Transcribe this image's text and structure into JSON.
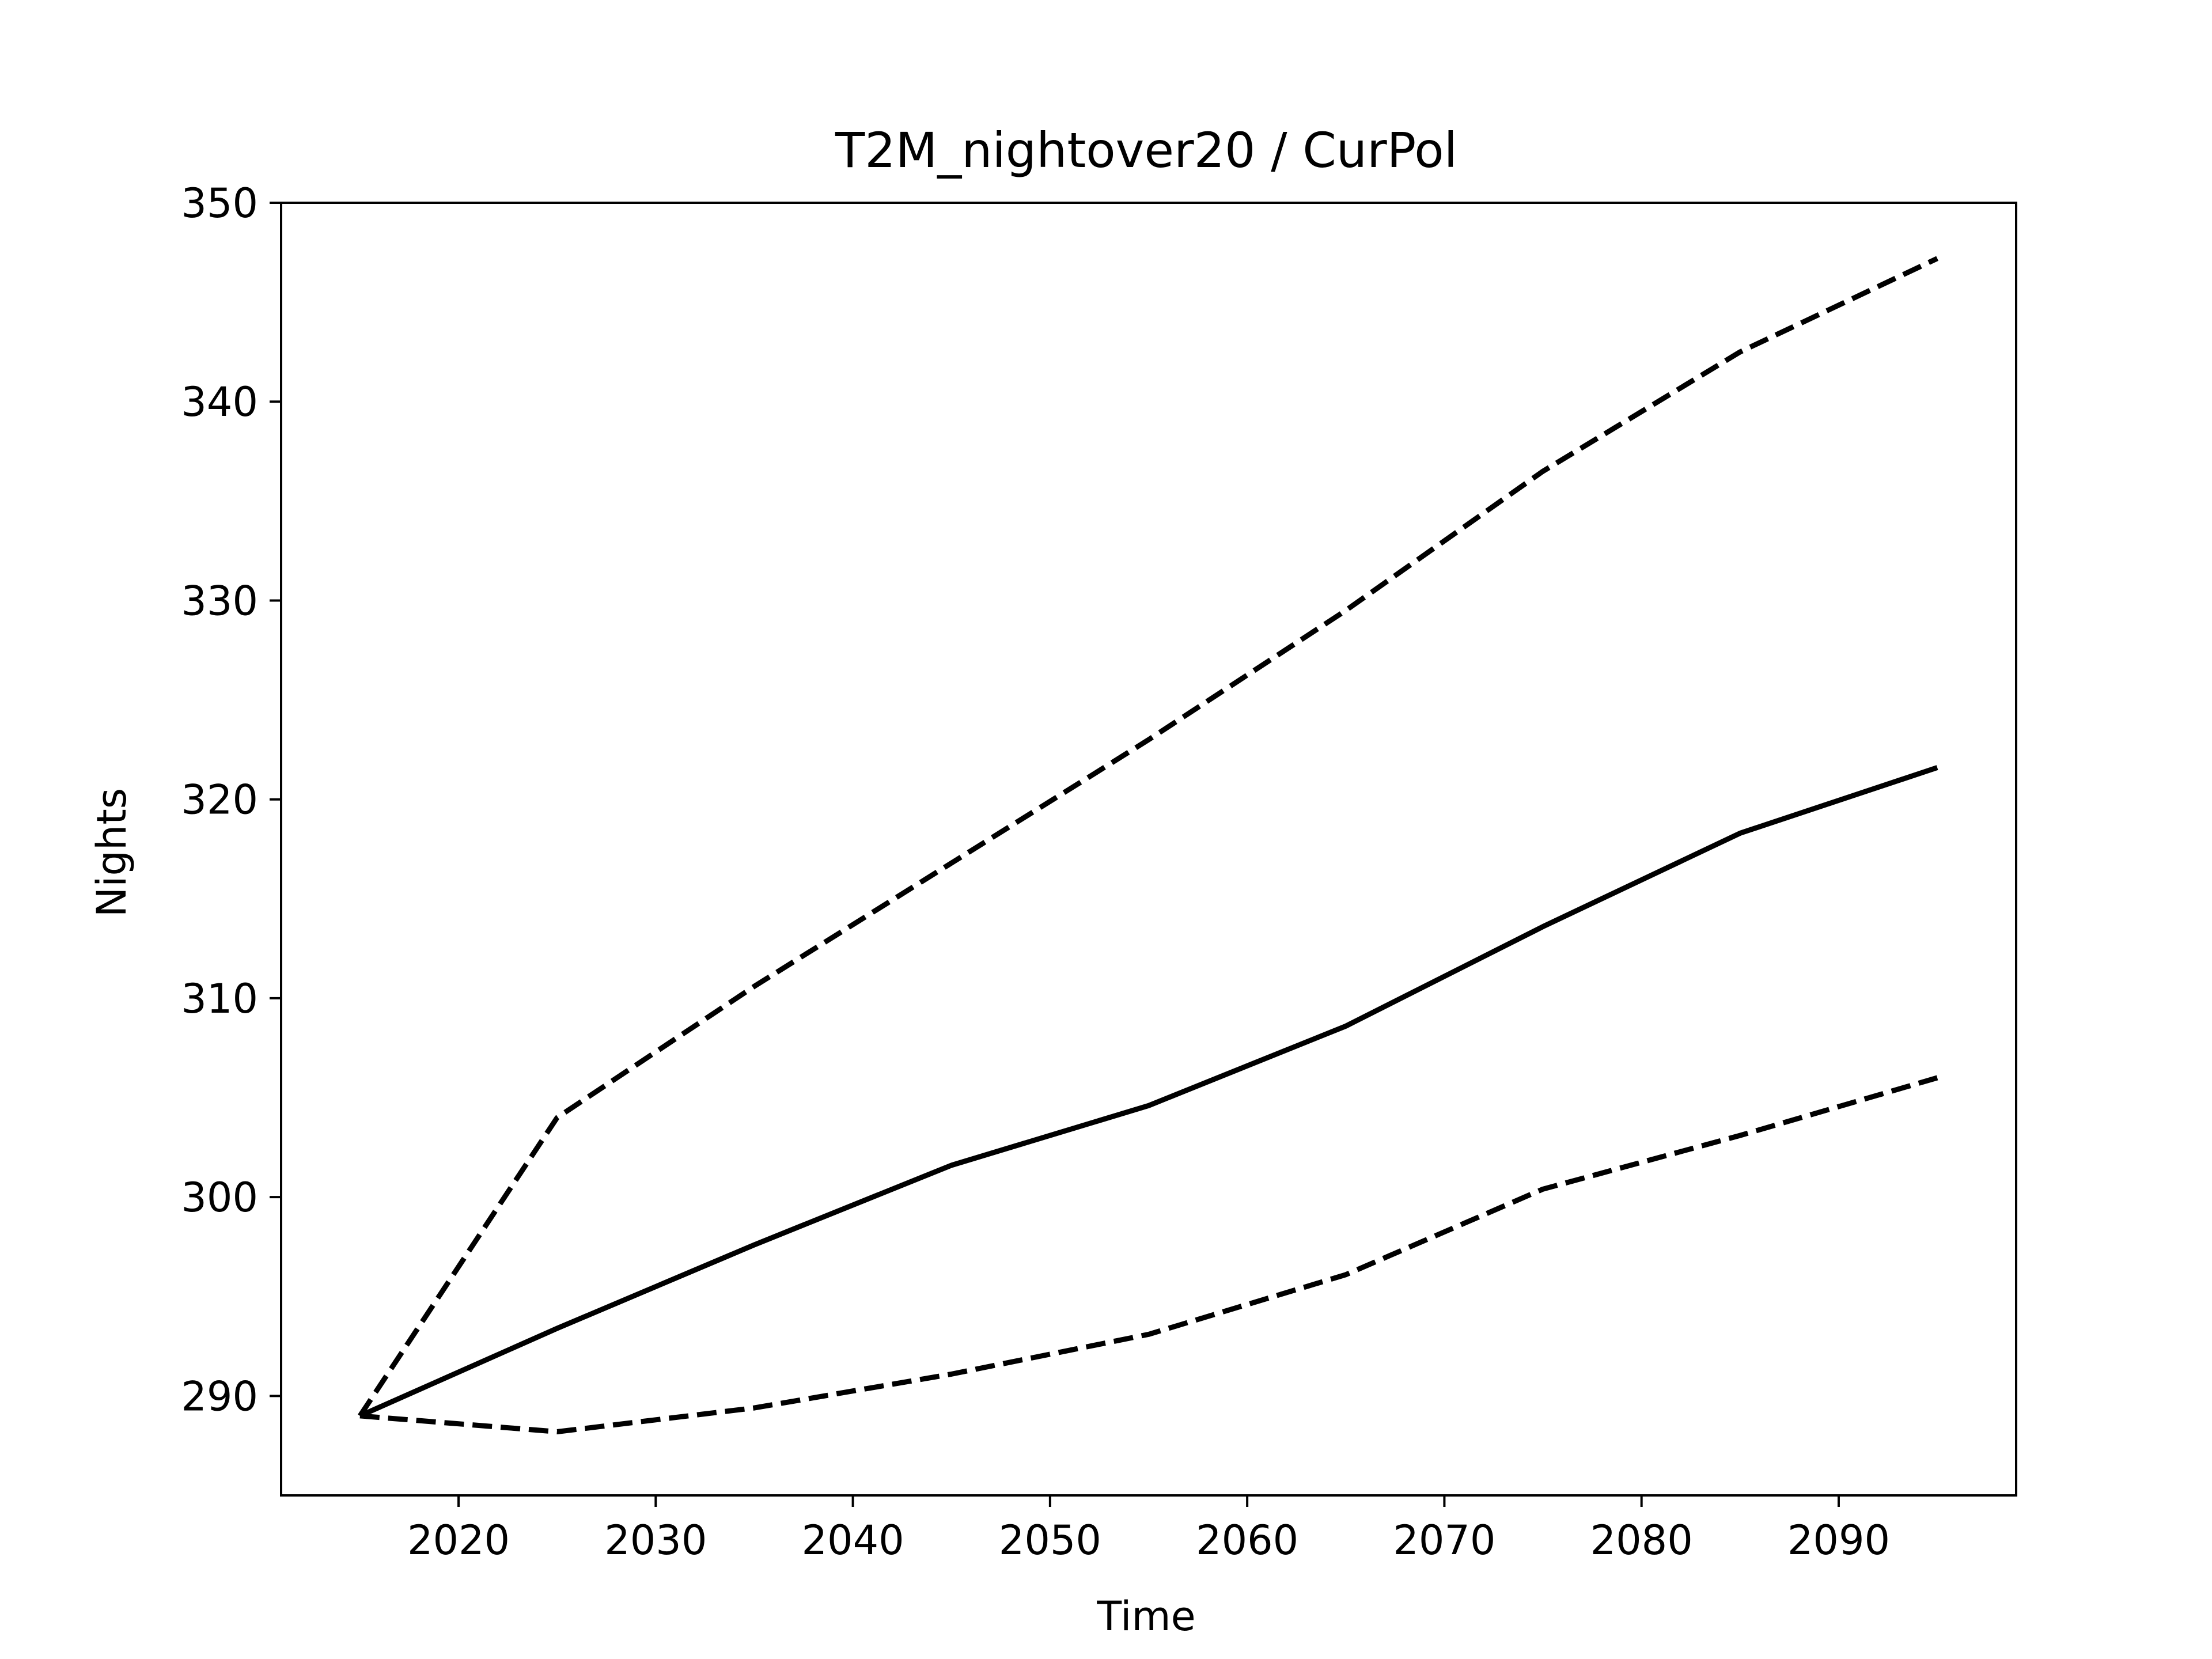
{
  "chart_data": {
    "type": "line",
    "title": "T2M_nightover20 / CurPol",
    "xlabel": "Time",
    "ylabel": "Nights",
    "xlim": [
      2011,
      2099
    ],
    "ylim": [
      285,
      350
    ],
    "xticks": [
      2020,
      2030,
      2040,
      2050,
      2060,
      2070,
      2080,
      2090
    ],
    "yticks": [
      290,
      300,
      310,
      320,
      330,
      340,
      350
    ],
    "grid": false,
    "legend": "none",
    "x": [
      2015,
      2025,
      2035,
      2045,
      2055,
      2065,
      2075,
      2085,
      2095
    ],
    "series": [
      {
        "style": "solid",
        "color": "#000000",
        "values": [
          289.0,
          293.4,
          297.6,
          301.6,
          304.6,
          308.6,
          313.6,
          318.3,
          321.6
        ]
      },
      {
        "style": "dashed",
        "color": "#000000",
        "values": [
          289.0,
          304.0,
          310.6,
          316.8,
          323.0,
          329.5,
          336.5,
          342.5,
          347.2
        ]
      },
      {
        "style": "dashed",
        "color": "#000000",
        "values": [
          289.0,
          288.2,
          289.4,
          291.1,
          293.1,
          296.1,
          300.4,
          303.1,
          306.0
        ]
      }
    ]
  }
}
